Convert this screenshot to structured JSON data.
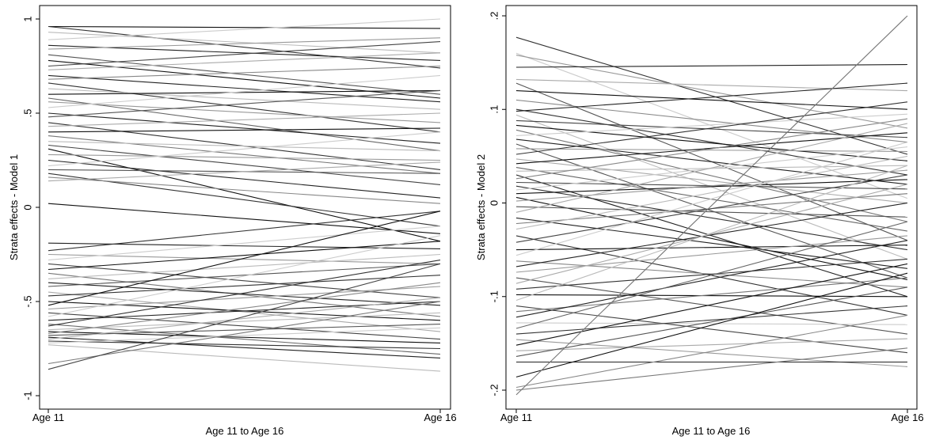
{
  "chart_data": [
    {
      "type": "line",
      "title": "",
      "xlabel": "Age 11 to Age 16",
      "ylabel": "Strata effects - Model 1",
      "categories": [
        "Age 11",
        "Age 16"
      ],
      "ylim": [
        -1,
        1
      ],
      "yticks": [
        -1,
        -0.5,
        0,
        0.5,
        1
      ],
      "ytick_labels": [
        "-1",
        "-.5",
        "0",
        ".5",
        "1"
      ],
      "grid": false,
      "legend": "none",
      "series": [
        {
          "values": [
            0.96,
            0.95
          ],
          "color": "#111111"
        },
        {
          "values": [
            0.96,
            0.74
          ],
          "color": "#333333"
        },
        {
          "values": [
            0.93,
            0.82
          ],
          "color": "#bbbbbb"
        },
        {
          "values": [
            0.89,
            1.0
          ],
          "color": "#cccccc"
        },
        {
          "values": [
            0.86,
            0.78
          ],
          "color": "#222222"
        },
        {
          "values": [
            0.84,
            0.9
          ],
          "color": "#999999"
        },
        {
          "values": [
            0.81,
            0.6
          ],
          "color": "#555555"
        },
        {
          "values": [
            0.78,
            0.58
          ],
          "color": "#111111"
        },
        {
          "values": [
            0.75,
            0.88
          ],
          "color": "#444444"
        },
        {
          "values": [
            0.73,
            0.82
          ],
          "color": "#aaaaaa"
        },
        {
          "values": [
            0.7,
            0.56
          ],
          "color": "#222222"
        },
        {
          "values": [
            0.68,
            0.75
          ],
          "color": "#888888"
        },
        {
          "values": [
            0.66,
            0.4
          ],
          "color": "#333333"
        },
        {
          "values": [
            0.63,
            0.52
          ],
          "color": "#bbbbbb"
        },
        {
          "values": [
            0.6,
            0.62
          ],
          "color": "#111111"
        },
        {
          "values": [
            0.58,
            0.3
          ],
          "color": "#666666"
        },
        {
          "values": [
            0.56,
            0.45
          ],
          "color": "#999999"
        },
        {
          "values": [
            0.53,
            0.7
          ],
          "color": "#cccccc"
        },
        {
          "values": [
            0.5,
            0.34
          ],
          "color": "#222222"
        },
        {
          "values": [
            0.48,
            0.62
          ],
          "color": "#555555"
        },
        {
          "values": [
            0.45,
            0.2
          ],
          "color": "#333333"
        },
        {
          "values": [
            0.43,
            0.5
          ],
          "color": "#aaaaaa"
        },
        {
          "values": [
            0.4,
            0.42
          ],
          "color": "#111111"
        },
        {
          "values": [
            0.38,
            0.18
          ],
          "color": "#777777"
        },
        {
          "values": [
            0.35,
            0.3
          ],
          "color": "#bbbbbb"
        },
        {
          "values": [
            0.33,
            0.12
          ],
          "color": "#444444"
        },
        {
          "values": [
            0.31,
            -0.18
          ],
          "color": "#111111"
        },
        {
          "values": [
            0.28,
            0.25
          ],
          "color": "#999999"
        },
        {
          "values": [
            0.25,
            0.05
          ],
          "color": "#222222"
        },
        {
          "values": [
            0.22,
            0.4
          ],
          "color": "#cccccc"
        },
        {
          "values": [
            0.2,
            0.18
          ],
          "color": "#555555"
        },
        {
          "values": [
            0.18,
            -0.1
          ],
          "color": "#333333"
        },
        {
          "values": [
            0.16,
            0.02
          ],
          "color": "#888888"
        },
        {
          "values": [
            0.14,
            0.24
          ],
          "color": "#aaaaaa"
        },
        {
          "values": [
            0.02,
            -0.14
          ],
          "color": "#111111"
        },
        {
          "values": [
            -0.19,
            -0.22
          ],
          "color": "#222222"
        },
        {
          "values": [
            -0.23,
            -0.02
          ],
          "color": "#333333"
        },
        {
          "values": [
            -0.25,
            -0.3
          ],
          "color": "#999999"
        },
        {
          "values": [
            -0.28,
            -0.1
          ],
          "color": "#cccccc"
        },
        {
          "values": [
            -0.3,
            -0.48
          ],
          "color": "#444444"
        },
        {
          "values": [
            -0.33,
            -0.18
          ],
          "color": "#111111"
        },
        {
          "values": [
            -0.35,
            -0.58
          ],
          "color": "#777777"
        },
        {
          "values": [
            -0.38,
            -0.25
          ],
          "color": "#bbbbbb"
        },
        {
          "values": [
            -0.4,
            -0.52
          ],
          "color": "#222222"
        },
        {
          "values": [
            -0.42,
            -0.3
          ],
          "color": "#555555"
        },
        {
          "values": [
            -0.45,
            -0.66
          ],
          "color": "#aaaaaa"
        },
        {
          "values": [
            -0.47,
            -0.36
          ],
          "color": "#333333"
        },
        {
          "values": [
            -0.5,
            -0.6
          ],
          "color": "#111111"
        },
        {
          "values": [
            -0.52,
            -0.02
          ],
          "color": "#111111"
        },
        {
          "values": [
            -0.54,
            -0.42
          ],
          "color": "#999999"
        },
        {
          "values": [
            -0.56,
            -0.7
          ],
          "color": "#444444"
        },
        {
          "values": [
            -0.58,
            -0.15
          ],
          "color": "#cccccc"
        },
        {
          "values": [
            -0.6,
            -0.5
          ],
          "color": "#222222"
        },
        {
          "values": [
            -0.62,
            -0.78
          ],
          "color": "#666666"
        },
        {
          "values": [
            -0.63,
            -0.28
          ],
          "color": "#333333"
        },
        {
          "values": [
            -0.65,
            -0.56
          ],
          "color": "#bbbbbb"
        },
        {
          "values": [
            -0.66,
            -0.72
          ],
          "color": "#111111"
        },
        {
          "values": [
            -0.67,
            -0.4
          ],
          "color": "#888888"
        },
        {
          "values": [
            -0.68,
            -0.62
          ],
          "color": "#555555"
        },
        {
          "values": [
            -0.69,
            -0.8
          ],
          "color": "#222222"
        },
        {
          "values": [
            -0.7,
            -0.48
          ],
          "color": "#aaaaaa"
        },
        {
          "values": [
            -0.71,
            -0.75
          ],
          "color": "#333333"
        },
        {
          "values": [
            -0.72,
            -0.64
          ],
          "color": "#cccccc"
        },
        {
          "values": [
            -0.73,
            -0.87
          ],
          "color": "#bbbbbb"
        },
        {
          "values": [
            -0.83,
            -0.5
          ],
          "color": "#777777"
        },
        {
          "values": [
            -0.86,
            -0.3
          ],
          "color": "#444444"
        }
      ]
    },
    {
      "type": "line",
      "title": "",
      "xlabel": "Age 11 to Age 16",
      "ylabel": "Strata effects - Model 2",
      "categories": [
        "Age 11",
        "Age 16"
      ],
      "ylim": [
        -0.21,
        0.2
      ],
      "yticks": [
        -0.2,
        -0.1,
        0,
        0.1,
        0.2
      ],
      "ytick_labels": [
        "-.2",
        "-.1",
        "0",
        ".1",
        ".2"
      ],
      "grid": false,
      "legend": "none",
      "series": [
        {
          "values": [
            0.177,
            0.052
          ],
          "color": "#333333"
        },
        {
          "values": [
            0.16,
            0.005
          ],
          "color": "#cccccc"
        },
        {
          "values": [
            0.158,
            0.08
          ],
          "color": "#999999"
        },
        {
          "values": [
            0.145,
            0.148
          ],
          "color": "#222222"
        },
        {
          "values": [
            0.132,
            0.12
          ],
          "color": "#aaaaaa"
        },
        {
          "values": [
            0.128,
            -0.04
          ],
          "color": "#555555"
        },
        {
          "values": [
            0.12,
            0.1
          ],
          "color": "#111111"
        },
        {
          "values": [
            0.11,
            0.065
          ],
          "color": "#888888"
        },
        {
          "values": [
            0.1,
            0.03
          ],
          "color": "#333333"
        },
        {
          "values": [
            0.098,
            0.128
          ],
          "color": "#222222"
        },
        {
          "values": [
            0.094,
            -0.06
          ],
          "color": "#bbbbbb"
        },
        {
          "values": [
            0.088,
            0.07
          ],
          "color": "#444444"
        },
        {
          "values": [
            0.083,
            0.045
          ],
          "color": "#111111"
        },
        {
          "values": [
            0.078,
            -0.02
          ],
          "color": "#777777"
        },
        {
          "values": [
            0.072,
            0.095
          ],
          "color": "#cccccc"
        },
        {
          "values": [
            0.068,
            0.02
          ],
          "color": "#222222"
        },
        {
          "values": [
            0.063,
            -0.08
          ],
          "color": "#555555"
        },
        {
          "values": [
            0.058,
            0.055
          ],
          "color": "#999999"
        },
        {
          "values": [
            0.052,
            0.108
          ],
          "color": "#333333"
        },
        {
          "values": [
            0.047,
            0.0
          ],
          "color": "#aaaaaa"
        },
        {
          "values": [
            0.042,
            0.075
          ],
          "color": "#111111"
        },
        {
          "values": [
            0.038,
            -0.03
          ],
          "color": "#666666"
        },
        {
          "values": [
            0.034,
            0.04
          ],
          "color": "#bbbbbb"
        },
        {
          "values": [
            0.03,
            -0.1
          ],
          "color": "#222222"
        },
        {
          "values": [
            0.026,
            0.09
          ],
          "color": "#888888"
        },
        {
          "values": [
            0.022,
            0.015
          ],
          "color": "#444444"
        },
        {
          "values": [
            0.018,
            -0.05
          ],
          "color": "#333333"
        },
        {
          "values": [
            0.014,
            0.06
          ],
          "color": "#cccccc"
        },
        {
          "values": [
            0.01,
            0.025
          ],
          "color": "#111111"
        },
        {
          "values": [
            0.006,
            -0.082
          ],
          "color": "#111111"
        },
        {
          "values": [
            0.002,
            0.035
          ],
          "color": "#999999"
        },
        {
          "values": [
            -0.004,
            -0.015
          ],
          "color": "#555555"
        },
        {
          "values": [
            -0.01,
            0.085
          ],
          "color": "#aaaaaa"
        },
        {
          "values": [
            -0.016,
            -0.07
          ],
          "color": "#222222"
        },
        {
          "values": [
            -0.022,
            0.01
          ],
          "color": "#777777"
        },
        {
          "values": [
            -0.028,
            0.05
          ],
          "color": "#bbbbbb"
        },
        {
          "values": [
            -0.035,
            -0.12
          ],
          "color": "#333333"
        },
        {
          "values": [
            -0.042,
            0.03
          ],
          "color": "#444444"
        },
        {
          "values": [
            -0.05,
            -0.045
          ],
          "color": "#111111"
        },
        {
          "values": [
            -0.056,
            0.065
          ],
          "color": "#cccccc"
        },
        {
          "values": [
            -0.062,
            -0.09
          ],
          "color": "#888888"
        },
        {
          "values": [
            -0.068,
            0.0
          ],
          "color": "#222222"
        },
        {
          "values": [
            -0.074,
            -0.035
          ],
          "color": "#999999"
        },
        {
          "values": [
            -0.08,
            -0.14
          ],
          "color": "#555555"
        },
        {
          "values": [
            -0.086,
            0.02
          ],
          "color": "#aaaaaa"
        },
        {
          "values": [
            -0.092,
            -0.06
          ],
          "color": "#333333"
        },
        {
          "values": [
            -0.098,
            -0.1
          ],
          "color": "#111111"
        },
        {
          "values": [
            -0.104,
            0.04
          ],
          "color": "#bbbbbb"
        },
        {
          "values": [
            -0.11,
            -0.16
          ],
          "color": "#444444"
        },
        {
          "values": [
            -0.116,
            -0.08
          ],
          "color": "#777777"
        },
        {
          "values": [
            -0.122,
            -0.04
          ],
          "color": "#222222"
        },
        {
          "values": [
            -0.128,
            -0.13
          ],
          "color": "#cccccc"
        },
        {
          "values": [
            -0.134,
            -0.02
          ],
          "color": "#666666"
        },
        {
          "values": [
            -0.14,
            -0.11
          ],
          "color": "#333333"
        },
        {
          "values": [
            -0.146,
            -0.175
          ],
          "color": "#999999"
        },
        {
          "values": [
            -0.152,
            -0.065
          ],
          "color": "#111111"
        },
        {
          "values": [
            -0.158,
            -0.145
          ],
          "color": "#aaaaaa"
        },
        {
          "values": [
            -0.164,
            -0.09
          ],
          "color": "#555555"
        },
        {
          "values": [
            -0.17,
            -0.17
          ],
          "color": "#222222"
        },
        {
          "values": [
            -0.186,
            -0.075
          ],
          "color": "#111111"
        },
        {
          "values": [
            -0.197,
            -0.12
          ],
          "color": "#888888"
        },
        {
          "values": [
            -0.2,
            -0.155
          ],
          "color": "#777777"
        },
        {
          "values": [
            -0.205,
            0.2
          ],
          "color": "#777777"
        }
      ]
    }
  ]
}
